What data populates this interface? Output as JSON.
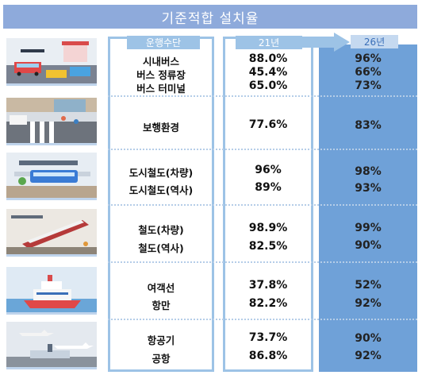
{
  "title": "기준적합 설치율",
  "headers": {
    "mode": "운행수단",
    "y21": "21년",
    "y26": "26년"
  },
  "groups": [
    {
      "icon": "bus-terminal-illustration",
      "items": [
        {
          "mode": "시내버스",
          "y21": "88.0%",
          "y26": "96%"
        },
        {
          "mode": "버스 정류장",
          "y21": "45.4%",
          "y26": "66%"
        },
        {
          "mode": "버스 터미널",
          "y21": "65.0%",
          "y26": "73%"
        }
      ]
    },
    {
      "icon": "pedestrian-street-illustration",
      "items": [
        {
          "mode": "보행환경",
          "y21": "77.6%",
          "y26": "83%"
        }
      ]
    },
    {
      "icon": "urban-train-illustration",
      "items": [
        {
          "mode": "도시철도(차량)",
          "y21": "96%",
          "y26": "98%"
        },
        {
          "mode": "도시철도(역사)",
          "y21": "89%",
          "y26": "93%"
        }
      ]
    },
    {
      "icon": "railway-station-illustration",
      "items": [
        {
          "mode": "철도(차량)",
          "y21": "98.9%",
          "y26": "99%"
        },
        {
          "mode": "철도(역사)",
          "y21": "82.5%",
          "y26": "90%"
        }
      ]
    },
    {
      "icon": "ferry-port-illustration",
      "items": [
        {
          "mode": "여객선",
          "y21": "37.8%",
          "y26": "52%"
        },
        {
          "mode": "항만",
          "y21": "82.2%",
          "y26": "92%"
        }
      ]
    },
    {
      "icon": "airport-illustration",
      "items": [
        {
          "mode": "항공기",
          "y21": "73.7%",
          "y26": "90%"
        },
        {
          "mode": "공항",
          "y21": "86.8%",
          "y26": "92%"
        }
      ]
    }
  ],
  "colors": {
    "title_bg": "#8eaadb",
    "header_bg": "#9dc3e6",
    "col26_bg": "#6fa1d8"
  }
}
